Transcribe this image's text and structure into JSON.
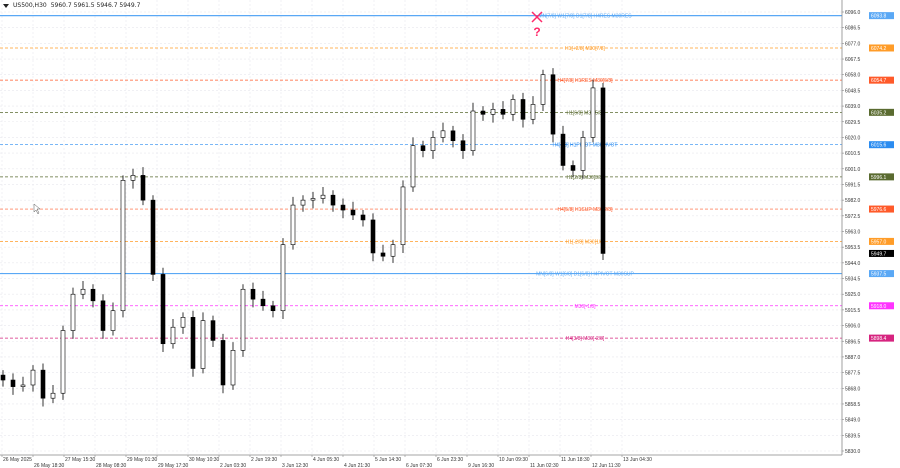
{
  "header": {
    "symbol": "US500,H30",
    "ohlc": "5960.7 5961.5 5946.7 5949.7"
  },
  "chart_data": {
    "type": "candlestick",
    "ylim": [
      5830.0,
      6096.0
    ],
    "grid": true,
    "y_ticks": [
      "6096.0",
      "6086.5",
      "6077.0",
      "6067.5",
      "6058.0",
      "6048.5",
      "6039.0",
      "6029.5",
      "6020.0",
      "6010.5",
      "6001.0",
      "5991.5",
      "5982.0",
      "5972.5",
      "5963.0",
      "5953.5",
      "5944.0",
      "5934.5",
      "5925.0",
      "5915.5",
      "5906.0",
      "5896.5",
      "5887.0",
      "5877.5",
      "5868.0",
      "5858.5",
      "5849.0",
      "5839.5",
      "5830.0"
    ],
    "x_ticks": [
      "26 May 2025",
      "26 May 18:30",
      "27 May 15:30",
      "28 May 08:30",
      "29 May 01:30",
      "29 May 17:30",
      "30 May 10:30",
      "2 Jun 03:30",
      "2 Jun 19:30",
      "3 Jun 12:30",
      "4 Jun 05:30",
      "4 Jun 21:30",
      "5 Jun 14:30",
      "6 Jun 07:30",
      "6 Jun 23:30",
      "9 Jun 16:30",
      "10 Jun 09:30",
      "11 Jun 02:30",
      "11 Jun 18:30",
      "12 Jun 11:30",
      "13 Jun 04:30"
    ],
    "closes": [
      5873,
      5869,
      5870,
      5879,
      5862,
      5865,
      5903,
      5925,
      5928,
      5921,
      5903,
      5915,
      5994,
      5997,
      5982,
      5937,
      5895,
      5905,
      5911,
      5880,
      5909,
      5897,
      5870,
      5891,
      5928,
      5922,
      5918,
      5915,
      5955,
      5979,
      5982,
      5983,
      5985,
      5979,
      5976,
      5973,
      5970,
      5950,
      5948,
      5955,
      5990,
      6015,
      6012,
      6020,
      6024,
      6018,
      6012,
      6036,
      6034,
      6037,
      6034,
      6043,
      6031,
      6040,
      6058,
      6022,
      6003,
      6000,
      6020,
      6050,
      5949.7
    ],
    "current_price": {
      "value": 5949.7,
      "label": "5949.7",
      "color": "#000000"
    },
    "levels": [
      {
        "price": 6093.8,
        "label": "MN[7/8] W1[7/8] D1[7/8] H4RES M30RES",
        "tag": "6093.8",
        "color": "#5aa8f5",
        "style": "solid"
      },
      {
        "price": 6074.2,
        "label": "H1[+2/8] M30[7/8]",
        "tag": "6074.2",
        "color": "#ff9c28",
        "style": "dashed"
      },
      {
        "price": 6054.7,
        "label": "H4[7/8] H1RES M30[6/8]",
        "tag": "6054.7",
        "color": "#ff5a2a",
        "style": "dashed"
      },
      {
        "price": 6035.2,
        "label": "H1[6/8] M30[5/8]",
        "tag": "6035.2",
        "color": "#5a6b30",
        "style": "dashed"
      },
      {
        "price": 6015.6,
        "label": "H4[4/8] H1PIVOT M30PIVOT",
        "tag": "6015.6",
        "color": "#2b8cf0",
        "style": "dashed"
      },
      {
        "price": 5996.1,
        "label": "H1[2/8] M30[3/8]",
        "tag": "5996.1",
        "color": "#5a6b30",
        "style": "dashed"
      },
      {
        "price": 5976.6,
        "label": "H4[5/8] H1SUP M30[2/8]",
        "tag": "5976.6",
        "color": "#ff5a2a",
        "style": "dashed"
      },
      {
        "price": 5957.0,
        "label": "H1[-2/8] M30[1/8]",
        "tag": "5957.0",
        "color": "#ff9c28",
        "style": "dashed"
      },
      {
        "price": 5937.5,
        "label": "MN[6/8] W1[6/8] D1[6/8] H4PIVOT M30SUP",
        "tag": "5937.5",
        "color": "#5aa8f5",
        "style": "solid"
      },
      {
        "price": 5918.0,
        "label": "M30[-1/8]",
        "tag": "5918.0",
        "color": "#ff33ff",
        "style": "dashed"
      },
      {
        "price": 5898.4,
        "label": "H4[3/8] M30[-2/8]",
        "tag": "5898.4",
        "color": "#d6247f",
        "style": "dashed"
      }
    ],
    "annotations": [
      {
        "type": "cross",
        "color": "#ff2a6a"
      },
      {
        "type": "text",
        "text": "?",
        "color": "#ff2a6a"
      }
    ]
  }
}
